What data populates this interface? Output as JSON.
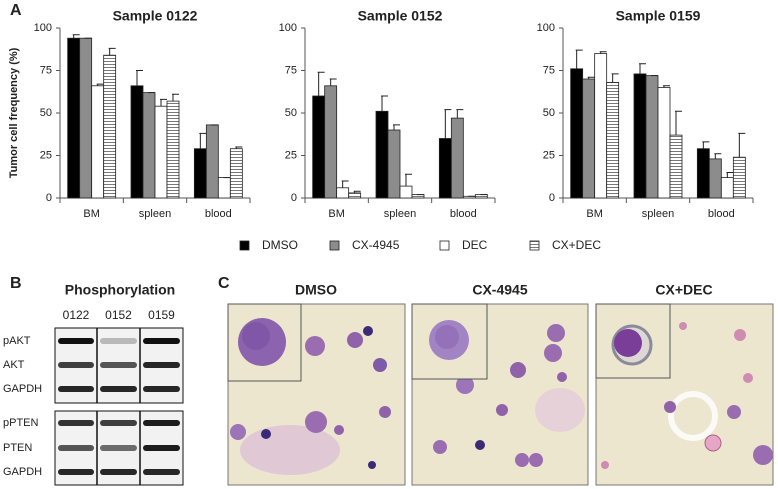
{
  "panel_labels": [
    "A",
    "B",
    "C"
  ],
  "chart_data": [
    {
      "type": "bar",
      "title": "Sample 0122",
      "y_label": "Tumor cell frequency (%)",
      "categories": [
        "BM",
        "spleen",
        "blood"
      ],
      "ylim": [
        0,
        100
      ],
      "yticks": [
        0,
        25,
        50,
        75,
        100
      ],
      "series": [
        {
          "name": "DMSO",
          "color": "#000000",
          "values": [
            94,
            66,
            29
          ],
          "errors": [
            2,
            9,
            9
          ]
        },
        {
          "name": "CX-4945",
          "color": "#8c8c8c",
          "values": [
            94,
            62,
            43
          ],
          "errors": [
            0,
            0,
            0
          ]
        },
        {
          "name": "DEC",
          "color": "#ffffff",
          "values": [
            66,
            54,
            12
          ],
          "errors": [
            1,
            4,
            0
          ]
        },
        {
          "name": "CX+DEC",
          "color": "#ffffff",
          "hatch": "horizontal",
          "values": [
            84,
            57,
            29
          ],
          "errors": [
            4,
            4,
            1
          ]
        }
      ]
    },
    {
      "type": "bar",
      "title": "Sample 0152",
      "categories": [
        "BM",
        "spleen",
        "blood"
      ],
      "ylim": [
        0,
        100
      ],
      "yticks": [
        0,
        25,
        50,
        75,
        100
      ],
      "series": [
        {
          "color": "#000000",
          "values": [
            60,
            51,
            35
          ],
          "errors": [
            14,
            9,
            17
          ]
        },
        {
          "color": "#8c8c8c",
          "values": [
            66,
            40,
            47
          ],
          "errors": [
            4,
            3,
            5
          ]
        },
        {
          "color": "#ffffff",
          "values": [
            6,
            7,
            1
          ],
          "errors": [
            4,
            7,
            0
          ]
        },
        {
          "color": "#ffffff",
          "hatch": "horizontal",
          "values": [
            3,
            2,
            2
          ],
          "errors": [
            1,
            0,
            0
          ]
        }
      ]
    },
    {
      "type": "bar",
      "title": "Sample 0159",
      "categories": [
        "BM",
        "spleen",
        "blood"
      ],
      "ylim": [
        0,
        100
      ],
      "yticks": [
        0,
        25,
        50,
        75,
        100
      ],
      "series": [
        {
          "color": "#000000",
          "values": [
            76,
            73,
            29
          ],
          "errors": [
            11,
            6,
            4
          ]
        },
        {
          "color": "#8c8c8c",
          "values": [
            70,
            72,
            23
          ],
          "errors": [
            1,
            0,
            3
          ]
        },
        {
          "color": "#ffffff",
          "values": [
            85,
            65,
            12
          ],
          "errors": [
            1,
            1,
            3
          ]
        },
        {
          "color": "#ffffff",
          "hatch": "horizontal",
          "values": [
            68,
            37,
            24
          ],
          "errors": [
            5,
            14,
            14
          ]
        }
      ]
    }
  ],
  "blot": {
    "title": "Phosphorylation",
    "samples": [
      "0122",
      "0152",
      "0159"
    ],
    "rows": [
      "pAKT",
      "AKT",
      "GAPDH",
      "pPTEN",
      "PTEN",
      "GAPDH"
    ]
  },
  "micrographs": [
    "DMSO",
    "CX-4945",
    "CX+DEC"
  ]
}
